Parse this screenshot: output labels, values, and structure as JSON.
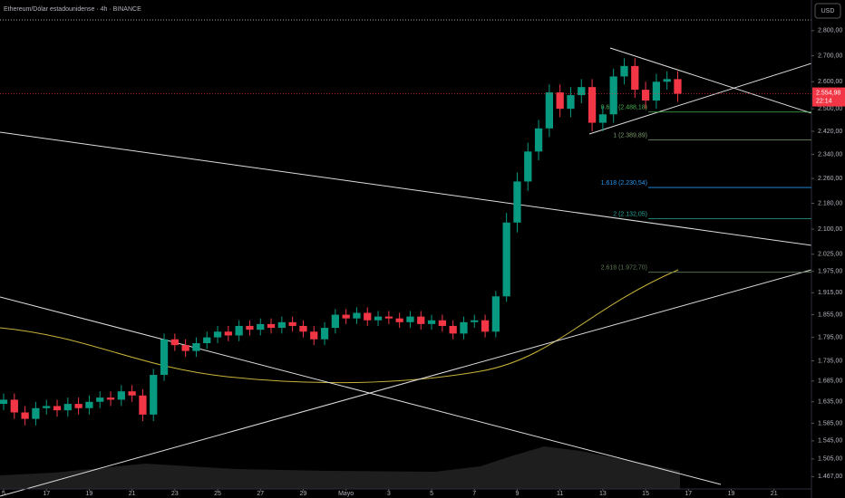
{
  "chart_data": {
    "type": "candlestick",
    "title": "Ethereum/Dólar estadounidense · 4h · BINANCE",
    "currency_button": "USD",
    "log_scale": true,
    "grid": false,
    "up_color": "#089981",
    "down_color": "#f23645",
    "x": [
      15,
      15.5,
      16,
      16.5,
      17,
      17.5,
      18,
      18.5,
      19,
      19.5,
      20,
      20.5,
      21,
      21.5,
      22,
      22.5,
      23,
      23.5,
      24,
      24.5,
      25,
      25.5,
      26,
      26.5,
      27,
      27.5,
      28,
      28.5,
      29,
      29.5,
      30,
      30.5,
      31,
      31.5,
      32,
      32.5,
      33,
      33.5,
      34,
      34.5,
      35,
      35.5,
      36,
      36.5,
      37,
      37.5,
      38,
      38.5,
      39,
      39.5,
      40,
      40.5,
      41,
      41.5,
      42,
      42.5,
      43,
      43.5,
      44,
      44.5,
      45,
      45.5,
      46,
      46.5
    ],
    "open": [
      1630,
      1640,
      1610,
      1595,
      1620,
      1625,
      1615,
      1630,
      1620,
      1635,
      1645,
      1640,
      1660,
      1650,
      1605,
      1700,
      1790,
      1775,
      1760,
      1780,
      1795,
      1810,
      1800,
      1825,
      1815,
      1830,
      1820,
      1835,
      1825,
      1810,
      1790,
      1820,
      1855,
      1845,
      1860,
      1840,
      1850,
      1845,
      1835,
      1850,
      1830,
      1840,
      1825,
      1805,
      1835,
      1840,
      1810,
      1905,
      2120,
      2250,
      2350,
      2430,
      2560,
      2500,
      2550,
      2580,
      2450,
      2480,
      2620,
      2660,
      2570,
      2530,
      2600,
      2610
    ],
    "high": [
      1655,
      1655,
      1625,
      1635,
      1640,
      1640,
      1645,
      1645,
      1650,
      1660,
      1660,
      1675,
      1675,
      1665,
      1715,
      1805,
      1805,
      1790,
      1795,
      1810,
      1825,
      1825,
      1840,
      1840,
      1845,
      1845,
      1850,
      1850,
      1840,
      1825,
      1835,
      1870,
      1870,
      1875,
      1875,
      1865,
      1865,
      1860,
      1865,
      1865,
      1855,
      1855,
      1840,
      1850,
      1855,
      1855,
      1920,
      2150,
      2280,
      2380,
      2460,
      2590,
      2590,
      2580,
      2610,
      2610,
      2510,
      2650,
      2690,
      2690,
      2600,
      2630,
      2640,
      2640
    ],
    "low": [
      1615,
      1595,
      1580,
      1580,
      1605,
      1600,
      1600,
      1605,
      1605,
      1620,
      1625,
      1625,
      1635,
      1590,
      1590,
      1685,
      1760,
      1745,
      1745,
      1765,
      1780,
      1785,
      1785,
      1800,
      1800,
      1805,
      1805,
      1810,
      1795,
      1775,
      1775,
      1805,
      1830,
      1830,
      1825,
      1825,
      1830,
      1820,
      1820,
      1815,
      1815,
      1810,
      1790,
      1790,
      1820,
      1795,
      1795,
      1890,
      2090,
      2220,
      2320,
      2400,
      2470,
      2470,
      2520,
      2420,
      2420,
      2450,
      2590,
      2540,
      2500,
      2500,
      2570,
      2525
    ],
    "close": [
      1640,
      1610,
      1595,
      1620,
      1625,
      1615,
      1630,
      1620,
      1635,
      1645,
      1640,
      1660,
      1650,
      1605,
      1700,
      1790,
      1775,
      1760,
      1780,
      1795,
      1810,
      1800,
      1825,
      1815,
      1830,
      1820,
      1835,
      1825,
      1810,
      1790,
      1820,
      1855,
      1845,
      1860,
      1840,
      1850,
      1845,
      1835,
      1850,
      1830,
      1840,
      1825,
      1805,
      1835,
      1840,
      1810,
      1905,
      2120,
      2250,
      2350,
      2430,
      2560,
      2500,
      2550,
      2580,
      2450,
      2480,
      2620,
      2660,
      2570,
      2530,
      2600,
      2610,
      2555
    ],
    "xlim": [
      14.83,
      52.75
    ],
    "xticks": [
      {
        "value": 15,
        "label": "5"
      },
      17,
      19,
      21,
      23,
      25,
      27,
      29,
      {
        "value": 31,
        "label": "Mayo"
      },
      {
        "value": 33,
        "label": "3"
      },
      {
        "value": 35,
        "label": "5"
      },
      {
        "value": 37,
        "label": "7"
      },
      {
        "value": 39,
        "label": "9"
      },
      {
        "value": 41,
        "label": "11"
      },
      {
        "value": 43,
        "label": "13"
      },
      {
        "value": 45,
        "label": "15"
      },
      {
        "value": 47,
        "label": "17"
      },
      {
        "value": 49,
        "label": "19"
      },
      {
        "value": 51,
        "label": "21"
      }
    ],
    "ylim": [
      1441,
      2927
    ],
    "yticks": [
      {
        "value": 2800,
        "label": "2.800,00"
      },
      {
        "value": 2700,
        "label": "2.700,00"
      },
      {
        "value": 2600,
        "label": "2.600,00"
      },
      {
        "value": 2500,
        "label": "2.500,00"
      },
      {
        "value": 2420,
        "label": "2.420,00"
      },
      {
        "value": 2340,
        "label": "2.340,00"
      },
      {
        "value": 2260,
        "label": "2.260,00"
      },
      {
        "value": 2180,
        "label": "2.180,00"
      },
      {
        "value": 2100,
        "label": "2.100,00"
      },
      {
        "value": 2025,
        "label": "2.025,00"
      },
      {
        "value": 1975,
        "label": "1.975,00"
      },
      {
        "value": 1915,
        "label": "1.915,00"
      },
      {
        "value": 1855,
        "label": "1.855,00"
      },
      {
        "value": 1795,
        "label": "1.795,00"
      },
      {
        "value": 1735,
        "label": "1.735,00"
      },
      {
        "value": 1685,
        "label": "1.685,00"
      },
      {
        "value": 1635,
        "label": "1.635,00"
      },
      {
        "value": 1585,
        "label": "1.585,00"
      },
      {
        "value": 1545,
        "label": "1.545,00"
      },
      {
        "value": 1505,
        "label": "1.505,00"
      },
      {
        "value": 1467,
        "label": "1.467,00"
      }
    ],
    "last_price": {
      "value": 2554.98,
      "label": "2.554,98",
      "color": "#f23645"
    },
    "countdown": "22:14",
    "fib_levels": [
      {
        "value": 2488.18,
        "label": "0.618 (2.488,18)",
        "color": "#4caf50"
      },
      {
        "value": 2389.89,
        "label": "1 (2.389,89)",
        "color": "#7c9a6e"
      },
      {
        "value": 2230.54,
        "label": "1.618 (2.230,54)",
        "color": "#2196f3"
      },
      {
        "value": 2132.05,
        "label": "2 (2.132,05)",
        "color": "#26a69a"
      },
      {
        "value": 1972.7,
        "label": "2.618 (1.972,70)",
        "color": "#5d7a55"
      }
    ]
  }
}
